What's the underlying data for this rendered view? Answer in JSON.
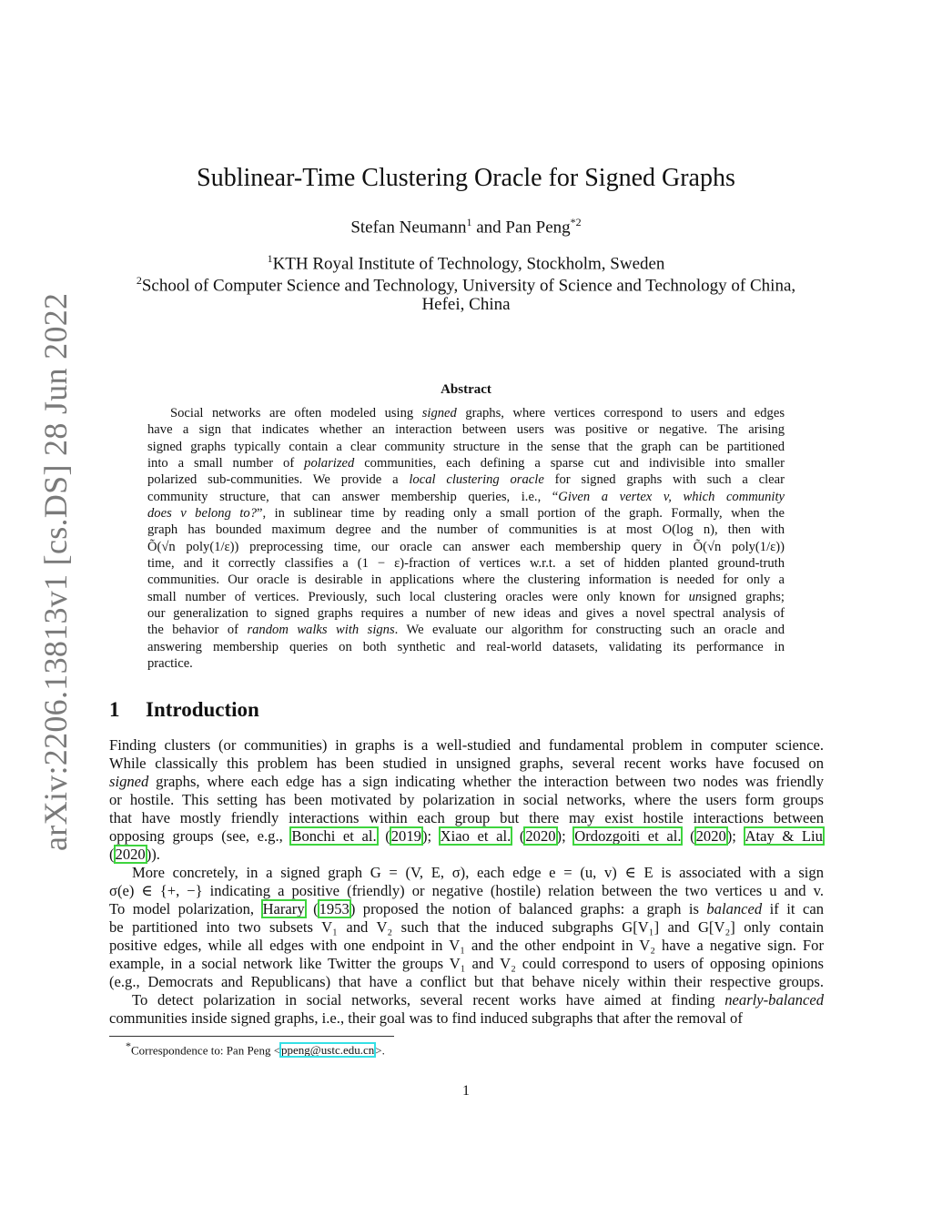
{
  "sidebar_id": "arXiv:2206.13813v1  [cs.DS]  28 Jun 2022",
  "title": "Sublinear-Time Clustering Oracle for Signed Graphs",
  "authors": {
    "a1": "Stefan Neumann",
    "a1_sup": "1",
    "and": " and ",
    "a2": "Pan Peng",
    "a2_sup": "*2"
  },
  "affiliations": [
    {
      "sup": "1",
      "text": "KTH Royal Institute of Technology, Stockholm, Sweden"
    },
    {
      "sup": "2",
      "text": "School of Computer Science and Technology, University of Science and Technology of China,"
    },
    {
      "sup": "",
      "text": "Hefei, China"
    }
  ],
  "abstract": {
    "heading": "Abstract",
    "lines": [
      [
        {
          "t": "Social networks are often modeled using "
        },
        {
          "t": "signed",
          "i": true
        },
        {
          "t": " graphs, where vertices correspond to users and edges"
        }
      ],
      [
        {
          "t": "have a sign that indicates whether an interaction between users was positive or negative. The arising"
        }
      ],
      [
        {
          "t": "signed graphs typically contain a clear community structure in the sense that the graph can be partitioned"
        }
      ],
      [
        {
          "t": "into a small number of "
        },
        {
          "t": "polarized",
          "i": true
        },
        {
          "t": " communities, each defining a sparse cut and indivisible into smaller"
        }
      ],
      [
        {
          "t": "polarized sub-communities.  We provide a "
        },
        {
          "t": "local clustering oracle",
          "i": true
        },
        {
          "t": " for signed graphs with such a clear"
        }
      ],
      [
        {
          "t": "community structure, that can answer membership queries, i.e., “"
        },
        {
          "t": "Given a vertex v, which community",
          "i": true
        }
      ],
      [
        {
          "t": "does v belong to?",
          "i": true
        },
        {
          "t": "”, in sublinear time by reading only a small portion of the graph. Formally, when the"
        }
      ],
      [
        {
          "t": "graph has bounded maximum degree and the number of communities is at most O(log n), then with"
        }
      ],
      [
        {
          "t": "Õ(√n poly(1/ε)) preprocessing time, our oracle can answer each membership query in Õ(√n poly(1/ε))"
        }
      ],
      [
        {
          "t": "time, and it correctly classifies a (1 − ε)-fraction of vertices w.r.t. a set of hidden planted ground-truth"
        }
      ],
      [
        {
          "t": "communities. Our oracle is desirable in applications where the clustering information is needed for only a"
        }
      ],
      [
        {
          "t": "small number of vertices. Previously, such local clustering oracles were only known for "
        },
        {
          "t": "un",
          "i": true
        },
        {
          "t": "signed graphs;"
        }
      ],
      [
        {
          "t": "our generalization to signed graphs requires a number of new ideas and gives a novel spectral analysis of"
        }
      ],
      [
        {
          "t": "the behavior of "
        },
        {
          "t": "random walks with signs",
          "i": true
        },
        {
          "t": ". We evaluate our algorithm for constructing such an oracle and"
        }
      ],
      [
        {
          "t": "answering membership queries on both synthetic and real-world datasets, validating its performance in"
        }
      ],
      [
        {
          "t": "practice."
        }
      ]
    ]
  },
  "intro": {
    "number": "1",
    "heading": "Introduction",
    "lines": [
      [
        {
          "t": "Finding clusters (or communities) in graphs is a well-studied and fundamental problem in computer science."
        }
      ],
      [
        {
          "t": "While classically this problem has been studied in unsigned graphs, several recent works have focused on"
        }
      ],
      [
        {
          "t": "signed",
          "i": true
        },
        {
          "t": " graphs, where each edge has a sign indicating whether the interaction between two nodes was friendly"
        }
      ],
      [
        {
          "t": "or hostile. This setting has been motivated by polarization in social networks, where the users form groups"
        }
      ],
      [
        {
          "t": "that have mostly friendly interactions within each group but there may exist hostile interactions between"
        }
      ],
      [
        {
          "t": "opposing groups (see, e.g., "
        },
        {
          "t": "Bonchi et al.",
          "c": 1
        },
        {
          "t": " ("
        },
        {
          "t": "2019",
          "c": 1
        },
        {
          "t": "); "
        },
        {
          "t": "Xiao et al.",
          "c": 1
        },
        {
          "t": " ("
        },
        {
          "t": "2020",
          "c": 1
        },
        {
          "t": "); "
        },
        {
          "t": "Ordozgoiti et al.",
          "c": 1
        },
        {
          "t": " ("
        },
        {
          "t": "2020",
          "c": 1
        },
        {
          "t": "); "
        },
        {
          "t": "Atay & Liu",
          "c": 1
        }
      ],
      [
        {
          "t": "("
        },
        {
          "t": "2020",
          "c": 1
        },
        {
          "t": "))."
        }
      ],
      [
        {
          "t": "More concretely, in a signed graph G = (V, E, σ), each edge e = (u, v) ∈ E is associated with a sign"
        }
      ],
      [
        {
          "t": "σ(e) ∈ {+, −} indicating a positive (friendly) or negative (hostile) relation between the two vertices u and v."
        }
      ],
      [
        {
          "t": "To model polarization, "
        },
        {
          "t": "Harary",
          "c": 1
        },
        {
          "t": " ("
        },
        {
          "t": "1953",
          "c": 1
        },
        {
          "t": ") proposed the notion of balanced graphs: a graph is "
        },
        {
          "t": "balanced",
          "i": true
        },
        {
          "t": " if it can"
        }
      ],
      [
        {
          "t": "be partitioned into two subsets V₁ and V₂ such that the induced subgraphs G[V₁] and G[V₂] only contain"
        }
      ],
      [
        {
          "t": "positive edges, while all edges with one endpoint in V₁ and the other endpoint in V₂ have a negative sign. For"
        }
      ],
      [
        {
          "t": "example, in a social network like Twitter the groups V₁ and V₂ could correspond to users of opposing opinions"
        }
      ],
      [
        {
          "t": "(e.g., Democrats and Republicans) that have a conflict but that behave nicely within their respective groups."
        }
      ],
      [
        {
          "t": "To detect polarization in social networks, several recent works have aimed at finding "
        },
        {
          "t": "nearly-balanced",
          "i": true
        }
      ],
      [
        {
          "t": "communities inside signed graphs, i.e., their goal was to find induced subgraphs that after the removal of"
        }
      ]
    ],
    "last_lines": [
      6
    ],
    "indent_lines": [
      7,
      14
    ]
  },
  "footnote": {
    "mark": "*",
    "text": "Correspondence to: Pan Peng <",
    "email": "ppeng@ustc.edu.cn",
    "end": ">."
  },
  "page_number": "1",
  "colors": {
    "citation_box": "#3ed43e",
    "email_box": "#35e0e6",
    "sidebar_text": "#7a7a7a"
  }
}
